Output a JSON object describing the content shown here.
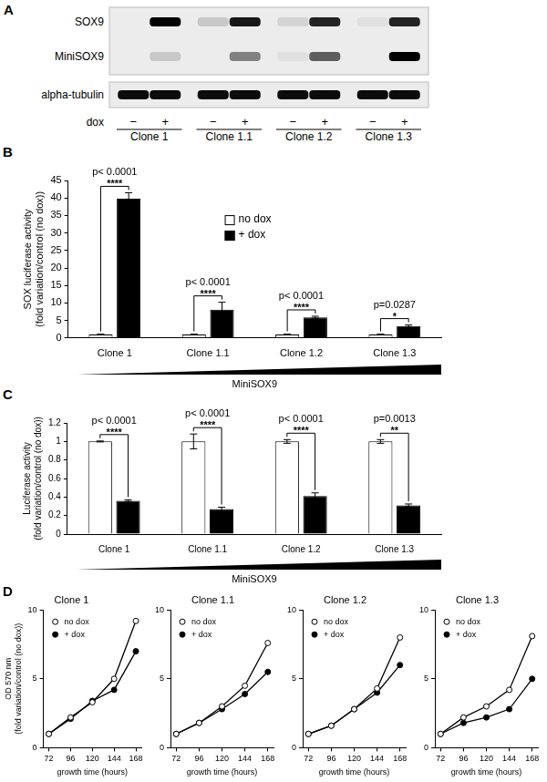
{
  "blot": {
    "panel": "A",
    "rows": [
      {
        "label": "SOX9",
        "intensity": [
          0.0,
          1.0,
          0.15,
          0.9,
          0.1,
          0.85,
          0.05,
          0.85
        ]
      },
      {
        "label": "MiniSOX9",
        "intensity": [
          0.0,
          0.15,
          0.0,
          0.45,
          0.05,
          0.6,
          0.0,
          1.0
        ]
      },
      {
        "label": "alpha-tubulin",
        "intensity": [
          0.95,
          0.95,
          0.95,
          0.95,
          0.95,
          0.95,
          0.95,
          0.95
        ]
      }
    ],
    "treatment_label": "dox",
    "treatment": [
      "−",
      "+",
      "−",
      "+",
      "−",
      "+",
      "−",
      "+"
    ],
    "groups": [
      "Clone 1",
      "Clone 1.1",
      "Clone 1.2",
      "Clone 1.3"
    ]
  },
  "chart_data": [
    {
      "panel": "B",
      "type": "bar",
      "categories": [
        "Clone 1",
        "Clone 1.1",
        "Clone 1.2",
        "Clone 1.3"
      ],
      "series": [
        {
          "name": "no dox",
          "color": "#ffffff",
          "values": [
            1,
            1,
            1,
            1
          ],
          "errors": [
            0.1,
            0.1,
            0.1,
            0.1
          ]
        },
        {
          "name": "+ dox",
          "color": "#000000",
          "values": [
            39.8,
            8.1,
            5.9,
            3.4
          ],
          "errors": [
            1.7,
            2.1,
            0.3,
            0.3
          ]
        }
      ],
      "ylabel": [
        "SOX luciferase activity",
        "(fold variation/control (no dox))"
      ],
      "ylim": [
        0,
        45
      ],
      "yticks": [
        0,
        5,
        10,
        15,
        20,
        25,
        30,
        35,
        40,
        45
      ],
      "grid": false,
      "legend": "upper center",
      "significance": [
        {
          "category": "Clone 1",
          "p": "p< 0.0001",
          "stars": "****"
        },
        {
          "category": "Clone 1.1",
          "p": "p< 0.0001",
          "stars": "****"
        },
        {
          "category": "Clone 1.2",
          "p": "p< 0.0001",
          "stars": "****"
        },
        {
          "category": "Clone 1.3",
          "p": "p=0.0287",
          "stars": "*"
        }
      ],
      "gradient_label": "MiniSOX9"
    },
    {
      "panel": "C",
      "type": "bar",
      "categories": [
        "Clone 1",
        "Clone 1.1",
        "Clone 1.2",
        "Clone 1.3"
      ],
      "series": [
        {
          "name": "no dox",
          "color": "#ffffff",
          "values": [
            1,
            1,
            1,
            1
          ],
          "errors": [
            0.005,
            0.08,
            0.02,
            0.02
          ]
        },
        {
          "name": "+ dox",
          "color": "#000000",
          "values": [
            0.36,
            0.27,
            0.41,
            0.31
          ],
          "errors": [
            0.01,
            0.02,
            0.035,
            0.015
          ]
        }
      ],
      "ylabel": [
        "Luciferase activity",
        "(fold variation/control (no dox))"
      ],
      "ylim": [
        0,
        1.2
      ],
      "yticks": [
        0,
        0.2,
        0.4,
        0.6,
        0.8,
        1,
        1.2
      ],
      "grid": false,
      "significance": [
        {
          "category": "Clone 1",
          "p": "p< 0.0001",
          "stars": "****"
        },
        {
          "category": "Clone 1.1",
          "p": "p< 0.0001",
          "stars": "****"
        },
        {
          "category": "Clone 1.2",
          "p": "p< 0.0001",
          "stars": "****"
        },
        {
          "category": "Clone 1.3",
          "p": "p=0.0013",
          "stars": "**"
        }
      ],
      "gradient_label": "MiniSOX9"
    },
    {
      "panel": "D",
      "type": "line",
      "title": "Clone 1",
      "x": [
        72,
        96,
        120,
        144,
        168
      ],
      "xlim": [
        66,
        174
      ],
      "xticks": [
        72,
        96,
        120,
        144,
        168
      ],
      "xlabel": "growth time (hours)",
      "ylabel": [
        "OD 570 nm",
        "(fold variation/control (no dox))"
      ],
      "ylim": [
        0,
        10
      ],
      "yticks": [
        0,
        5,
        10
      ],
      "grid": false,
      "legend": "upper left",
      "series": [
        {
          "name": "no dox",
          "color": "#000000",
          "marker": "open_circle",
          "values": [
            1,
            2.2,
            3.3,
            5.0,
            9.2
          ]
        },
        {
          "name": "+ dox",
          "color": "#000000",
          "marker": "filled_circle",
          "values": [
            1,
            2.1,
            3.4,
            4.2,
            7.0
          ]
        }
      ]
    },
    {
      "type": "line",
      "title": "Clone 1.1",
      "x": [
        72,
        96,
        120,
        144,
        168
      ],
      "xlim": [
        66,
        174
      ],
      "xticks": [
        72,
        96,
        120,
        144,
        168
      ],
      "xlabel": "growth time (hours)",
      "ylim": [
        0,
        10
      ],
      "yticks": [
        0,
        5,
        10
      ],
      "grid": false,
      "legend": "upper left",
      "series": [
        {
          "name": "no dox",
          "color": "#000000",
          "marker": "open_circle",
          "values": [
            1,
            1.8,
            3.0,
            4.5,
            7.6
          ]
        },
        {
          "name": "+ dox",
          "color": "#000000",
          "marker": "filled_circle",
          "values": [
            1,
            1.8,
            2.8,
            3.9,
            5.5
          ]
        }
      ]
    },
    {
      "type": "line",
      "title": "Clone 1.2",
      "x": [
        72,
        96,
        120,
        144,
        168
      ],
      "xlim": [
        66,
        174
      ],
      "xticks": [
        72,
        96,
        120,
        144,
        168
      ],
      "xlabel": "growth time (hours)",
      "ylim": [
        0,
        10
      ],
      "yticks": [
        0,
        5,
        10
      ],
      "grid": false,
      "legend": "upper left",
      "series": [
        {
          "name": "no dox",
          "color": "#000000",
          "marker": "open_circle",
          "values": [
            1,
            1.6,
            2.8,
            4.3,
            8.0
          ]
        },
        {
          "name": "+ dox",
          "color": "#000000",
          "marker": "filled_circle",
          "values": [
            1,
            1.6,
            2.8,
            4.0,
            6.0
          ]
        }
      ]
    },
    {
      "type": "line",
      "title": "Clone 1.3",
      "x": [
        72,
        96,
        120,
        144,
        168
      ],
      "xlim": [
        66,
        174
      ],
      "xticks": [
        72,
        96,
        120,
        144,
        168
      ],
      "xlabel": "growth time (hours)",
      "ylim": [
        0,
        10
      ],
      "yticks": [
        0,
        5,
        10
      ],
      "grid": false,
      "legend": "upper left",
      "series": [
        {
          "name": "no dox",
          "color": "#000000",
          "marker": "open_circle",
          "values": [
            1,
            2.2,
            3.0,
            4.2,
            8.1
          ]
        },
        {
          "name": "+ dox",
          "color": "#000000",
          "marker": "filled_circle",
          "values": [
            1,
            1.8,
            2.2,
            2.8,
            5.0
          ]
        }
      ]
    }
  ]
}
